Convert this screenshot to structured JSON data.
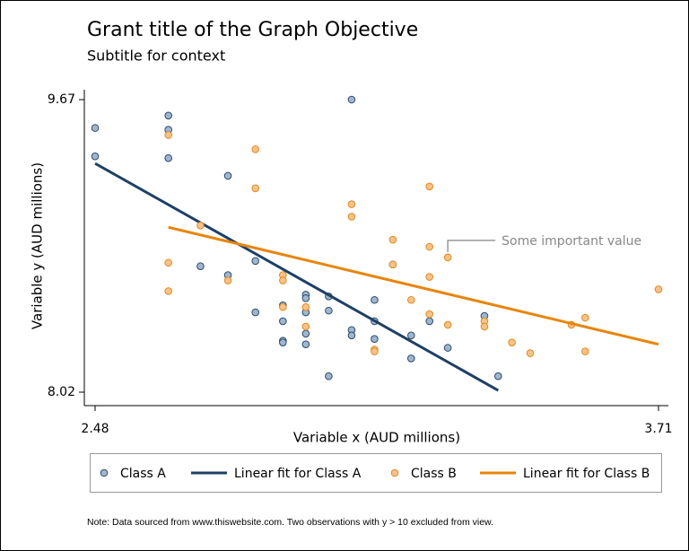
{
  "chart_data": {
    "type": "scatter",
    "title": "Grant title of the Graph Objective",
    "subtitle": "Subtitle for context",
    "xlabel": "Variable x (AUD millions)",
    "ylabel": "Variable y (AUD millions)",
    "xlim": [
      2.48,
      3.71
    ],
    "ylim": [
      8.02,
      9.67
    ],
    "xticks": [
      2.48,
      3.71
    ],
    "yticks": [
      8.02,
      9.67
    ],
    "grid": false,
    "series": [
      {
        "name": "Class A",
        "type": "scatter",
        "color": "#9fb6cf",
        "edgecolor": "#2d4b6b",
        "x": [
          2.48,
          2.48,
          2.64,
          2.64,
          2.64,
          2.77,
          2.71,
          2.77,
          2.83,
          2.83,
          2.89,
          2.89,
          2.89,
          2.89,
          2.94,
          2.94,
          2.94,
          2.94,
          2.94,
          2.99,
          2.99,
          2.99,
          3.04,
          3.04,
          3.04,
          3.09,
          3.09,
          3.09,
          3.13,
          3.17,
          3.17,
          3.21,
          3.25,
          3.33,
          3.36
        ],
        "values": [
          9.51,
          9.35,
          9.58,
          9.5,
          9.34,
          9.24,
          8.73,
          8.68,
          8.76,
          8.47,
          8.51,
          8.42,
          8.31,
          8.3,
          8.57,
          8.55,
          8.47,
          8.35,
          8.29,
          8.56,
          8.48,
          8.11,
          9.67,
          8.37,
          8.34,
          8.54,
          8.42,
          8.32,
          8.74,
          8.34,
          8.21,
          8.42,
          8.27,
          8.45,
          8.11
        ]
      },
      {
        "name": "Linear fit for Class A",
        "type": "line",
        "color": "#1d3f66",
        "x": [
          2.48,
          3.36
        ],
        "values": [
          9.31,
          8.03
        ]
      },
      {
        "name": "Class B",
        "type": "scatter",
        "color": "#f7c289",
        "edgecolor": "#e08a1e",
        "x": [
          2.64,
          2.64,
          2.64,
          2.71,
          2.77,
          2.83,
          2.83,
          2.89,
          2.89,
          2.89,
          2.94,
          2.94,
          3.04,
          3.04,
          3.09,
          3.09,
          3.13,
          3.13,
          3.17,
          3.21,
          3.21,
          3.21,
          3.21,
          3.25,
          3.25,
          3.33,
          3.33,
          3.39,
          3.43,
          3.52,
          3.55,
          3.55,
          3.71
        ],
        "values": [
          9.47,
          8.75,
          8.59,
          8.96,
          8.65,
          9.39,
          9.17,
          8.68,
          8.65,
          8.5,
          8.5,
          8.39,
          9.08,
          9.01,
          8.26,
          8.25,
          8.88,
          8.74,
          8.54,
          9.18,
          8.84,
          8.67,
          8.46,
          8.78,
          8.4,
          8.42,
          8.39,
          8.3,
          8.24,
          8.4,
          8.44,
          8.25,
          8.6
        ]
      },
      {
        "name": "Linear fit for Class B",
        "type": "line",
        "color": "#e8850c",
        "x": [
          2.64,
          3.71
        ],
        "values": [
          8.95,
          8.29
        ]
      }
    ],
    "annotation": {
      "text": "Some important value",
      "x": 3.25,
      "y": 8.78
    },
    "note": "Note: Data sourced from www.thiswebsite.com. Two observations with y > 10 excluded from view."
  }
}
